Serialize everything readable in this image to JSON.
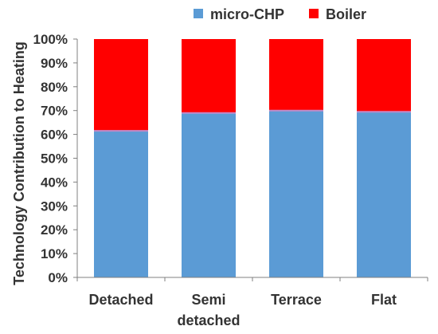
{
  "chart_data": {
    "type": "bar",
    "stacked": true,
    "categories": [
      [
        "Detached"
      ],
      [
        "Semi",
        "detached"
      ],
      [
        "Terrace"
      ],
      [
        "Flat"
      ]
    ],
    "series": [
      {
        "name": "micro-CHP",
        "values": [
          61.5,
          69.0,
          70.0,
          69.5
        ],
        "color": "#5B9BD5"
      },
      {
        "name": "Boiler",
        "values": [
          38.5,
          31.0,
          30.0,
          30.5
        ],
        "color": "#FF0000"
      }
    ],
    "separator_color": "#C28AC8",
    "ylabel": "Technology Contribution to Heating",
    "xlabel": "",
    "ylim": [
      0,
      100
    ],
    "yticks": [
      "0%",
      "10%",
      "20%",
      "30%",
      "40%",
      "50%",
      "60%",
      "70%",
      "80%",
      "90%",
      "100%"
    ],
    "legend_position": "top",
    "grid": false
  }
}
